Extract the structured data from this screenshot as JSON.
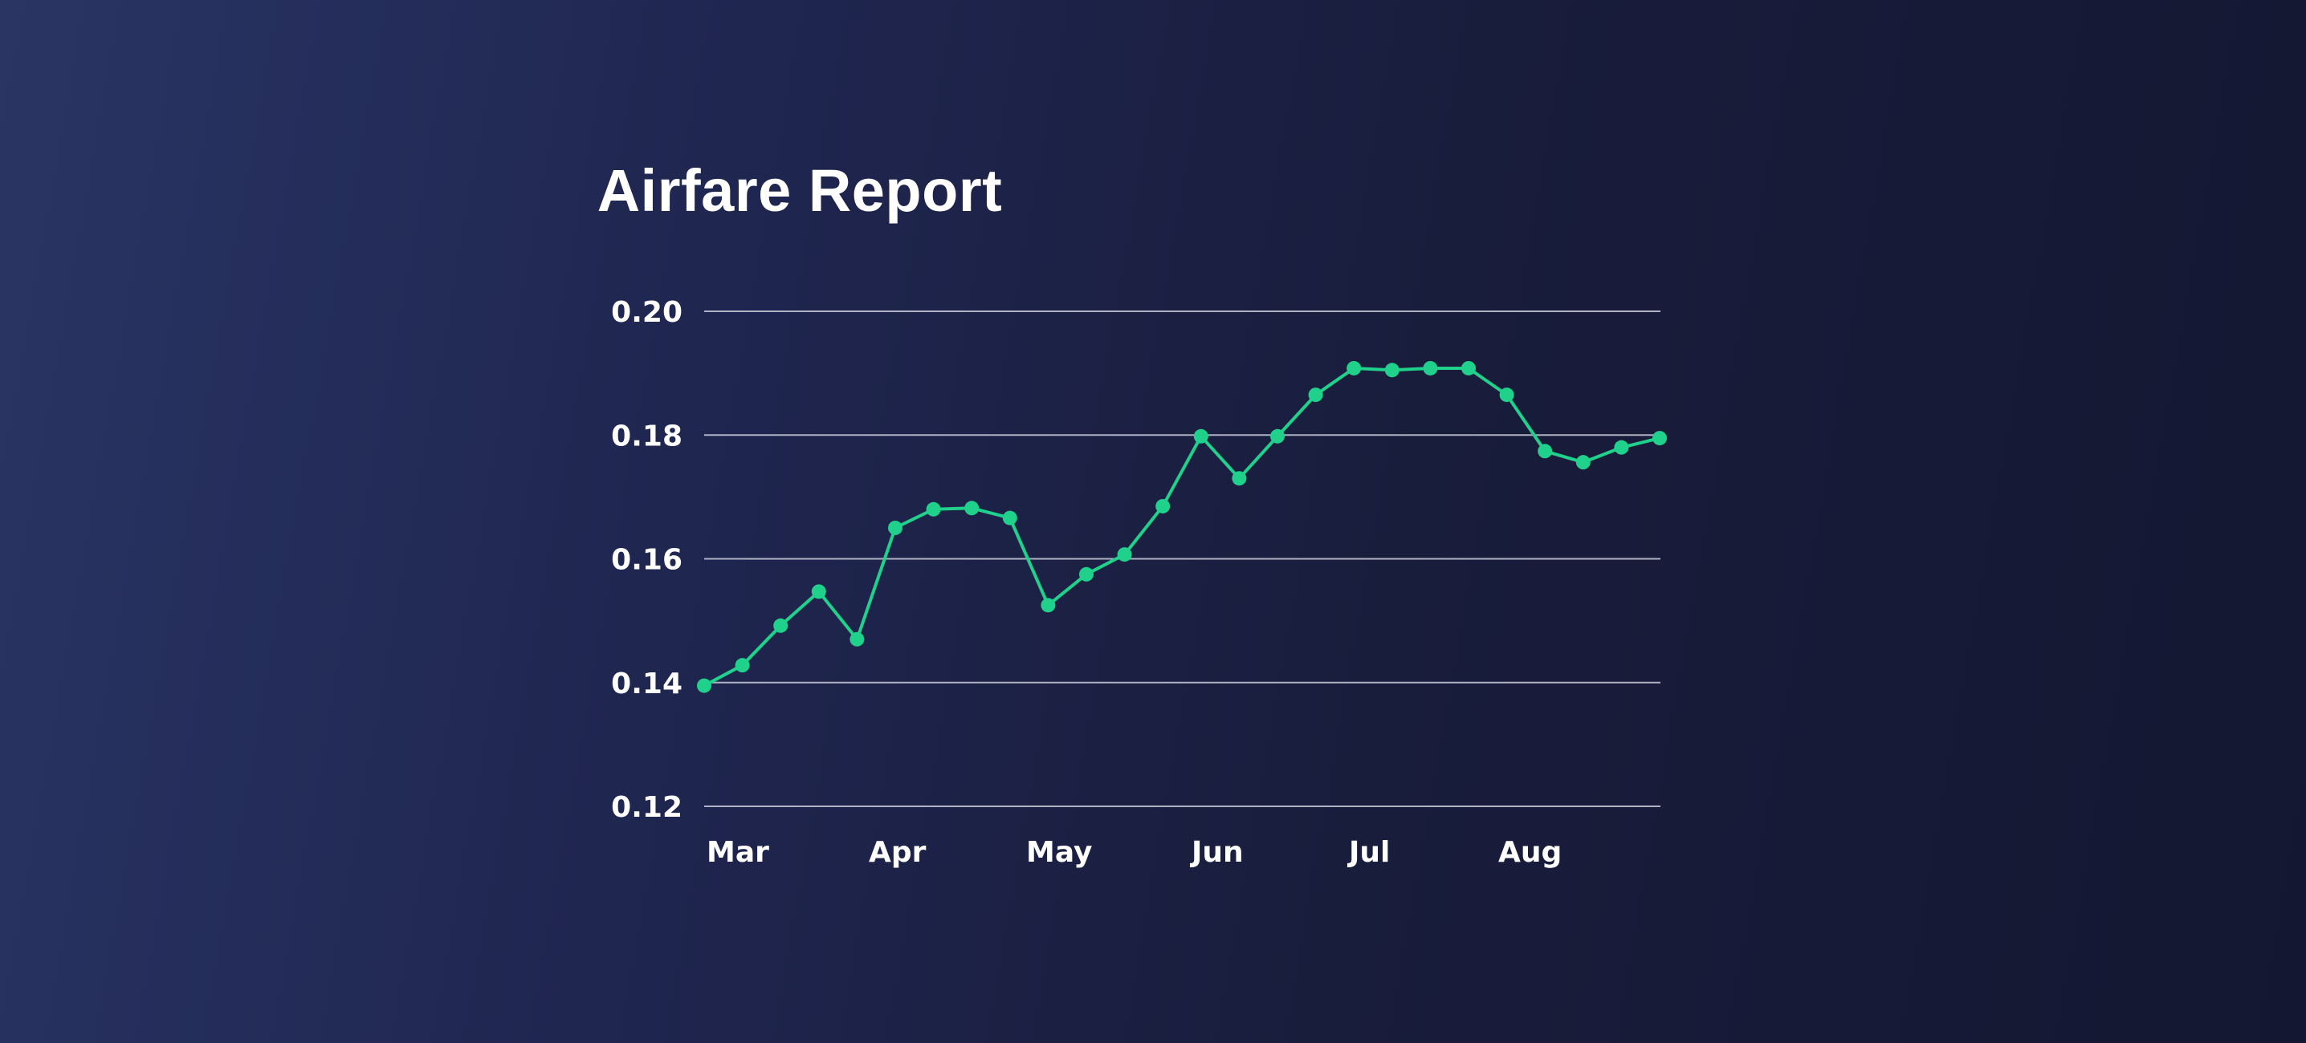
{
  "chart_data": {
    "type": "line",
    "title": "Airfare Report",
    "xlabel": "",
    "ylabel": "",
    "ylim": [
      0.12,
      0.2
    ],
    "y_ticks": [
      "0.20",
      "0.18",
      "0.16",
      "0.14",
      "0.12"
    ],
    "x_tick_labels": [
      "Mar",
      "Apr",
      "May",
      "Jun",
      "Jul",
      "Aug"
    ],
    "grid": "horizontal",
    "legend": "none",
    "line_color": "#1fd18a",
    "series": [
      {
        "values": [
          0.1395,
          0.1428,
          0.1492,
          0.1547,
          0.147,
          0.165,
          0.168,
          0.1682,
          0.1666,
          0.1525,
          0.1575,
          0.1607,
          0.1685,
          0.1798,
          0.173,
          0.1798,
          0.1865,
          0.1908,
          0.1905,
          0.1908,
          0.1908,
          0.1865,
          0.1774,
          0.1756,
          0.178,
          0.1795
        ]
      }
    ]
  }
}
